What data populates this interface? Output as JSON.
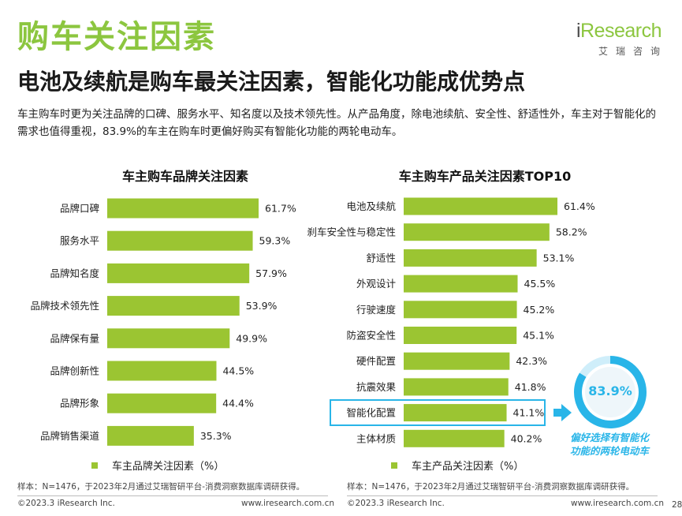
{
  "header": {
    "title": "购车关注因素",
    "subtitle": "电池及续航是购车最关注因素，智能化功能成优势点",
    "description": "车主购车时更为关注品牌的口碑、服务水平、知名度以及技术领先性。从产品角度，除电池续航、安全性、舒适性外，车主对于智能化的需求也值得重视，83.9%的车主在购车时更偏好购买有智能化功能的两轮电动车。"
  },
  "logo": {
    "brand_prefix": "i",
    "brand_rest": "Research",
    "cn": "艾瑞咨询"
  },
  "colors": {
    "bar": "#9bc532",
    "accent": "#8cc63f",
    "highlight": "#29b5e8"
  },
  "chart_data": [
    {
      "type": "bar",
      "orientation": "horizontal",
      "title": "车主购车品牌关注因素",
      "categories": [
        "品牌口碑",
        "服务水平",
        "品牌知名度",
        "品牌技术领先性",
        "品牌保有量",
        "品牌创新性",
        "品牌形象",
        "品牌销售渠道"
      ],
      "values": [
        61.7,
        59.3,
        57.9,
        53.9,
        49.9,
        44.5,
        44.4,
        35.3
      ],
      "value_labels": [
        "61.7%",
        "59.3%",
        "57.9%",
        "53.9%",
        "49.9%",
        "44.5%",
        "44.4%",
        "35.3%"
      ],
      "legend": "车主品牌关注因素（%）",
      "xlim": [
        0,
        70
      ]
    },
    {
      "type": "bar",
      "orientation": "horizontal",
      "title": "车主购车产品关注因素TOP10",
      "categories": [
        "电池及续航",
        "刹车安全性与稳定性",
        "舒适性",
        "外观设计",
        "行驶速度",
        "防盗安全性",
        "硬件配置",
        "抗震效果",
        "智能化配置",
        "主体材质"
      ],
      "values": [
        61.4,
        58.2,
        53.1,
        45.5,
        45.2,
        45.1,
        42.3,
        41.8,
        41.1,
        40.2
      ],
      "value_labels": [
        "61.4%",
        "58.2%",
        "53.1%",
        "45.5%",
        "45.2%",
        "45.1%",
        "42.3%",
        "41.8%",
        "41.1%",
        "40.2%"
      ],
      "legend": "车主产品关注因素（%）",
      "highlighted_category": "智能化配置",
      "xlim": [
        0,
        70
      ]
    }
  ],
  "callout": {
    "value": 83.9,
    "value_label": "83.9%",
    "caption_line1": "偏好选择有智能化",
    "caption_line2": "功能的两轮电动车"
  },
  "footer": {
    "note": "样本：N=1476，于2023年2月通过艾瑞智研平台-消费洞察数据库调研获得。",
    "copyright": "©2023.3 iResearch Inc.",
    "site": "www.iresearch.com.cn",
    "page": "28"
  }
}
